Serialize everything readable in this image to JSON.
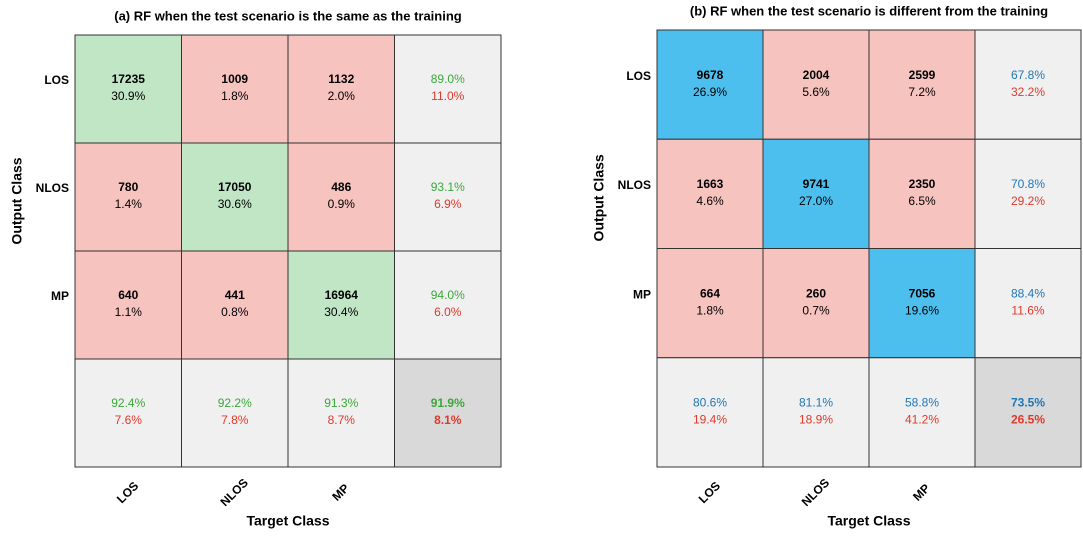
{
  "chart_data": [
    {
      "type": "confusion-matrix",
      "title": "(a) RF when the test scenario is the same as the training",
      "x_label": "Target Class",
      "y_label": "Output Class",
      "classes": [
        "LOS",
        "NLOS",
        "MP"
      ],
      "counts": [
        [
          17235,
          1009,
          1132
        ],
        [
          780,
          17050,
          486
        ],
        [
          640,
          441,
          16964
        ]
      ],
      "percents": [
        [
          "30.9%",
          "1.8%",
          "2.0%"
        ],
        [
          "1.4%",
          "30.6%",
          "0.9%"
        ],
        [
          "1.1%",
          "0.8%",
          "30.4%"
        ]
      ],
      "row_summary": [
        [
          "89.0%",
          "11.0%"
        ],
        [
          "93.1%",
          "6.9%"
        ],
        [
          "94.0%",
          "6.0%"
        ]
      ],
      "col_summary": [
        [
          "92.4%",
          "7.6%"
        ],
        [
          "92.2%",
          "7.8%"
        ],
        [
          "91.3%",
          "8.7%"
        ]
      ],
      "overall": [
        "91.9%",
        "8.1%"
      ],
      "diagonal_color": "#c0e6c5",
      "off_diagonal_color": "#f6c3bf",
      "correct_color": "#3aa83a",
      "error_color": "#e0392c"
    },
    {
      "type": "confusion-matrix",
      "title": "(b) RF when the test scenario is different from the training",
      "x_label": "Target Class",
      "y_label": "Output Class",
      "classes": [
        "LOS",
        "NLOS",
        "MP"
      ],
      "counts": [
        [
          9678,
          2004,
          2599
        ],
        [
          1663,
          9741,
          2350
        ],
        [
          664,
          260,
          7056
        ]
      ],
      "percents": [
        [
          "26.9%",
          "5.6%",
          "7.2%"
        ],
        [
          "4.6%",
          "27.0%",
          "6.5%"
        ],
        [
          "1.8%",
          "0.7%",
          "19.6%"
        ]
      ],
      "row_summary": [
        [
          "67.8%",
          "32.2%"
        ],
        [
          "70.8%",
          "29.2%"
        ],
        [
          "88.4%",
          "11.6%"
        ]
      ],
      "col_summary": [
        [
          "80.6%",
          "19.4%"
        ],
        [
          "81.1%",
          "18.9%"
        ],
        [
          "58.8%",
          "41.2%"
        ]
      ],
      "overall": [
        "73.5%",
        "26.5%"
      ],
      "diagonal_color": "#4dbfee",
      "off_diagonal_color": "#f6c3bf",
      "correct_color": "#1f77b4",
      "error_color": "#e0392c"
    }
  ]
}
